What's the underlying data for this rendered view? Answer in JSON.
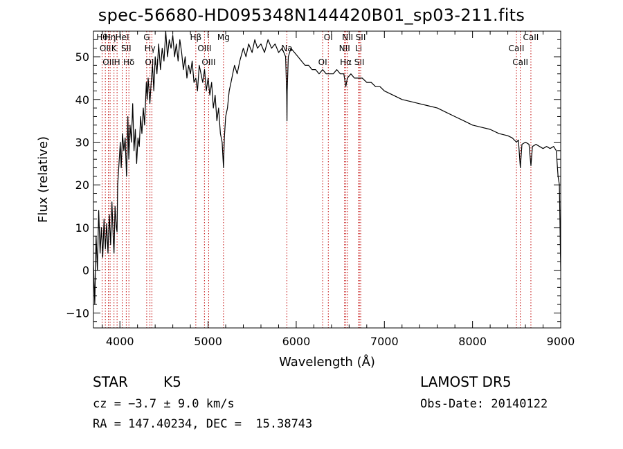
{
  "chart_data": {
    "type": "line",
    "title": "spec-56680-HD095348N144420B01_sp03-211.fits",
    "xlabel": "Wavelength (Å)",
    "ylabel": "Flux (relative)",
    "xlim": [
      3700,
      9000
    ],
    "ylim": [
      -13.5,
      56
    ],
    "xticks": [
      4000,
      5000,
      6000,
      7000,
      8000,
      9000
    ],
    "yticks": [
      -10,
      0,
      10,
      20,
      30,
      40,
      50
    ],
    "grid": false,
    "series": [
      {
        "color": "#000000",
        "points": [
          [
            3700,
            2
          ],
          [
            3715,
            -8
          ],
          [
            3730,
            8
          ],
          [
            3745,
            0
          ],
          [
            3760,
            14
          ],
          [
            3775,
            4
          ],
          [
            3790,
            10
          ],
          [
            3805,
            3
          ],
          [
            3820,
            12
          ],
          [
            3835,
            5
          ],
          [
            3850,
            11
          ],
          [
            3865,
            4
          ],
          [
            3880,
            13
          ],
          [
            3895,
            6
          ],
          [
            3910,
            16
          ],
          [
            3925,
            7
          ],
          [
            3933,
            4
          ],
          [
            3945,
            15
          ],
          [
            3960,
            10
          ],
          [
            3968,
            9
          ],
          [
            3975,
            20
          ],
          [
            3990,
            25
          ],
          [
            4005,
            30
          ],
          [
            4015,
            24
          ],
          [
            4030,
            32
          ],
          [
            4045,
            28
          ],
          [
            4060,
            31
          ],
          [
            4075,
            22
          ],
          [
            4090,
            36
          ],
          [
            4101,
            26
          ],
          [
            4115,
            34
          ],
          [
            4130,
            30
          ],
          [
            4145,
            39
          ],
          [
            4160,
            28
          ],
          [
            4175,
            33
          ],
          [
            4190,
            25
          ],
          [
            4205,
            31
          ],
          [
            4220,
            29
          ],
          [
            4235,
            36
          ],
          [
            4250,
            32
          ],
          [
            4265,
            38
          ],
          [
            4280,
            34
          ],
          [
            4300,
            44
          ],
          [
            4310,
            40
          ],
          [
            4320,
            45
          ],
          [
            4340,
            39
          ],
          [
            4355,
            44
          ],
          [
            4370,
            48
          ],
          [
            4385,
            42
          ],
          [
            4400,
            50
          ],
          [
            4420,
            46
          ],
          [
            4440,
            53
          ],
          [
            4460,
            47
          ],
          [
            4480,
            52
          ],
          [
            4500,
            49
          ],
          [
            4520,
            56
          ],
          [
            4540,
            50
          ],
          [
            4560,
            54
          ],
          [
            4580,
            52
          ],
          [
            4600,
            55
          ],
          [
            4620,
            50
          ],
          [
            4640,
            53
          ],
          [
            4660,
            49
          ],
          [
            4680,
            54
          ],
          [
            4700,
            51
          ],
          [
            4720,
            47
          ],
          [
            4740,
            50
          ],
          [
            4760,
            45
          ],
          [
            4780,
            48
          ],
          [
            4800,
            46
          ],
          [
            4820,
            49
          ],
          [
            4840,
            44
          ],
          [
            4861,
            45
          ],
          [
            4880,
            42
          ],
          [
            4900,
            48
          ],
          [
            4920,
            46
          ],
          [
            4940,
            44
          ],
          [
            4960,
            47
          ],
          [
            4980,
            42
          ],
          [
            5000,
            45
          ],
          [
            5020,
            41
          ],
          [
            5040,
            44
          ],
          [
            5060,
            38
          ],
          [
            5080,
            41
          ],
          [
            5100,
            35
          ],
          [
            5120,
            38
          ],
          [
            5140,
            32
          ],
          [
            5160,
            30
          ],
          [
            5170,
            26
          ],
          [
            5175,
            24
          ],
          [
            5185,
            31
          ],
          [
            5200,
            36
          ],
          [
            5220,
            38
          ],
          [
            5240,
            42
          ],
          [
            5260,
            44
          ],
          [
            5280,
            46
          ],
          [
            5300,
            48
          ],
          [
            5330,
            46
          ],
          [
            5360,
            49
          ],
          [
            5400,
            52
          ],
          [
            5430,
            50
          ],
          [
            5460,
            53
          ],
          [
            5500,
            51
          ],
          [
            5530,
            54
          ],
          [
            5560,
            52
          ],
          [
            5600,
            53
          ],
          [
            5640,
            51
          ],
          [
            5680,
            54
          ],
          [
            5720,
            52
          ],
          [
            5760,
            53
          ],
          [
            5800,
            51
          ],
          [
            5840,
            52
          ],
          [
            5880,
            50
          ],
          [
            5892,
            41
          ],
          [
            5895,
            35
          ],
          [
            5898,
            42
          ],
          [
            5910,
            50
          ],
          [
            5940,
            52
          ],
          [
            5980,
            51
          ],
          [
            6020,
            50
          ],
          [
            6060,
            49
          ],
          [
            6100,
            48
          ],
          [
            6140,
            48
          ],
          [
            6180,
            47
          ],
          [
            6220,
            47
          ],
          [
            6260,
            46
          ],
          [
            6300,
            47
          ],
          [
            6340,
            46
          ],
          [
            6380,
            46
          ],
          [
            6420,
            46
          ],
          [
            6460,
            47
          ],
          [
            6500,
            46
          ],
          [
            6540,
            46
          ],
          [
            6563,
            43
          ],
          [
            6580,
            45
          ],
          [
            6620,
            46
          ],
          [
            6660,
            45
          ],
          [
            6700,
            45
          ],
          [
            6750,
            45
          ],
          [
            6800,
            44
          ],
          [
            6850,
            44
          ],
          [
            6900,
            43
          ],
          [
            6950,
            43
          ],
          [
            7000,
            42
          ],
          [
            7100,
            41
          ],
          [
            7200,
            40
          ],
          [
            7300,
            39.5
          ],
          [
            7400,
            39
          ],
          [
            7500,
            38.5
          ],
          [
            7600,
            38
          ],
          [
            7700,
            37
          ],
          [
            7800,
            36
          ],
          [
            7900,
            35
          ],
          [
            8000,
            34
          ],
          [
            8100,
            33.5
          ],
          [
            8200,
            33
          ],
          [
            8300,
            32
          ],
          [
            8400,
            31.5
          ],
          [
            8450,
            31
          ],
          [
            8498,
            30
          ],
          [
            8520,
            30.5
          ],
          [
            8542,
            24
          ],
          [
            8560,
            29.5
          ],
          [
            8600,
            30
          ],
          [
            8640,
            29.5
          ],
          [
            8662,
            24.5
          ],
          [
            8680,
            29
          ],
          [
            8720,
            29.5
          ],
          [
            8760,
            29
          ],
          [
            8800,
            28.5
          ],
          [
            8840,
            29
          ],
          [
            8880,
            28.5
          ],
          [
            8920,
            29
          ],
          [
            8950,
            28
          ],
          [
            8970,
            22
          ],
          [
            8985,
            20
          ],
          [
            9000,
            0
          ]
        ]
      }
    ],
    "lines": [
      {
        "x": 3798,
        "labels": [
          "Hθ"
        ]
      },
      {
        "x": 3835,
        "labels": [
          "OII"
        ]
      },
      {
        "x": 3869,
        "labels": [
          "OII"
        ]
      },
      {
        "x": 3889,
        "labels": [
          "Hη"
        ]
      },
      {
        "x": 3933,
        "labels": [
          "K"
        ]
      },
      {
        "x": 3968,
        "labels": [
          "H"
        ]
      },
      {
        "x": 4026,
        "labels": [
          "HeI"
        ]
      },
      {
        "x": 4072,
        "labels": [
          "SII"
        ]
      },
      {
        "x": 4102,
        "labels": [
          "Hδ"
        ]
      },
      {
        "x": 4304,
        "labels": [
          "G"
        ]
      },
      {
        "x": 4341,
        "labels": [
          "Hγ"
        ]
      },
      {
        "x": 4363,
        "labels": [
          "OIII"
        ]
      },
      {
        "x": 4861,
        "labels": [
          "Hβ"
        ]
      },
      {
        "x": 4959,
        "labels": [
          "OIII"
        ]
      },
      {
        "x": 5007,
        "labels": [
          "OIII"
        ]
      },
      {
        "x": 5175,
        "labels": [
          "Mg"
        ]
      },
      {
        "x": 5894,
        "labels": [
          "Na"
        ]
      },
      {
        "x": 6300,
        "labels": [
          "OI"
        ]
      },
      {
        "x": 6364,
        "labels": [
          "OI"
        ]
      },
      {
        "x": 6548,
        "labels": [
          "NII"
        ]
      },
      {
        "x": 6563,
        "labels": [
          "Hα"
        ]
      },
      {
        "x": 6583,
        "labels": [
          "NII"
        ]
      },
      {
        "x": 6708,
        "labels": [
          "Li"
        ]
      },
      {
        "x": 6716,
        "labels": [
          "SII"
        ]
      },
      {
        "x": 6731,
        "labels": [
          "SII"
        ]
      },
      {
        "x": 8498,
        "labels": [
          "CaII"
        ]
      },
      {
        "x": 8542,
        "labels": [
          "CaII"
        ]
      },
      {
        "x": 8662,
        "labels": [
          "CaII"
        ]
      }
    ],
    "line_color": "#c00000"
  },
  "info": {
    "class_label": "STAR",
    "subclass": "K5",
    "survey": "LAMOST DR5",
    "cz_text": "cz = −3.7 ± 9.0 km/s",
    "obs_date": "Obs-Date: 20140122",
    "radec": "RA = 147.40234, DEC =  15.38743"
  }
}
